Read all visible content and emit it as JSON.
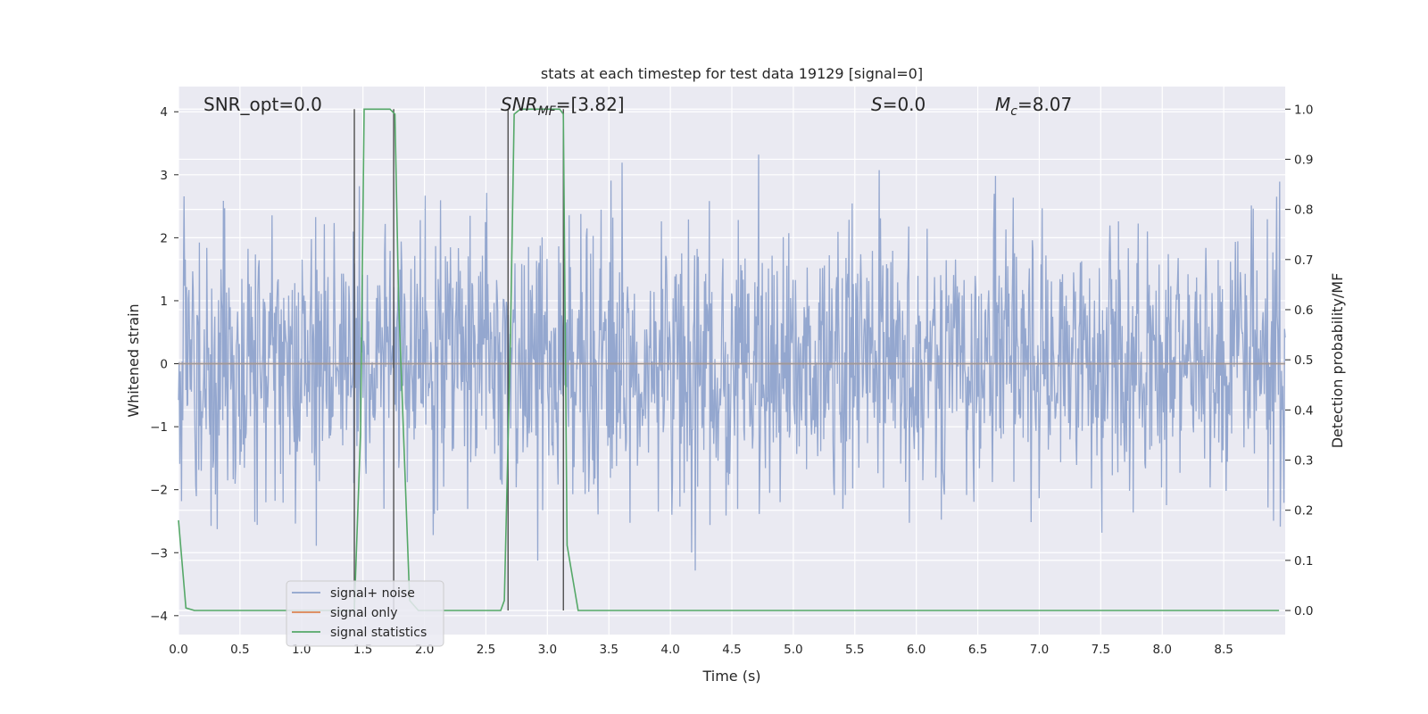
{
  "chart_data": {
    "type": "line",
    "title": "stats at each timestep for test data 19129 [signal=0]",
    "xlabel": "Time (s)",
    "ylabel": "Whitened strain",
    "y2label": "Detection probability/MF",
    "xlim": [
      0.0,
      9.0
    ],
    "ylim": [
      -4.3,
      4.4
    ],
    "y2lim": [
      -0.048,
      1.045
    ],
    "xticks": [
      "0.0",
      "0.5",
      "1.0",
      "1.5",
      "2.0",
      "2.5",
      "3.0",
      "3.5",
      "4.0",
      "4.5",
      "5.0",
      "5.5",
      "6.0",
      "6.5",
      "7.0",
      "7.5",
      "8.0",
      "8.5"
    ],
    "yticks": [
      "4",
      "3",
      "2",
      "1",
      "0",
      "−1",
      "−2",
      "−3",
      "−4"
    ],
    "y2ticks": [
      "1.0",
      "0.9",
      "0.8",
      "0.7",
      "0.6",
      "0.5",
      "0.4",
      "0.3",
      "0.2",
      "0.1",
      "0.0"
    ],
    "grid": true,
    "legend_position": "lower-left",
    "annotations": [
      {
        "id": "snr-opt",
        "text": "SNR_opt=0.0"
      },
      {
        "id": "snr-mf",
        "prefix": "SNR",
        "sub": "MF",
        "text": "=[3.82]"
      },
      {
        "id": "s-val",
        "prefix": "S",
        "text": "=0.0"
      },
      {
        "id": "mc-val",
        "prefix": "M",
        "sub": "c",
        "text": "=8.07"
      }
    ],
    "series": [
      {
        "name": "signal+ noise",
        "color": "#8fa3cc",
        "note": "whitened strain noise, amplitude ~N(0,1), peaks about ±3.5"
      },
      {
        "name": "signal only",
        "color": "#dd8452",
        "values_constant": 0.0
      },
      {
        "name": "signal statistics",
        "color": "#55a868",
        "x": [
          0.0,
          0.06,
          0.13,
          1.43,
          1.48,
          1.51,
          1.72,
          1.76,
          1.79,
          1.88,
          1.95,
          2.62,
          2.65,
          2.7,
          2.73,
          2.78,
          3.1,
          3.13,
          3.16,
          3.25,
          8.95
        ],
        "y": [
          0.18,
          0.005,
          0.0,
          0.0,
          0.35,
          1.0,
          1.0,
          0.99,
          0.62,
          0.02,
          0.0,
          0.0,
          0.02,
          0.55,
          0.99,
          1.0,
          1.0,
          0.99,
          0.13,
          0.0,
          0.0
        ]
      }
    ],
    "vlines": [
      {
        "x": 1.43,
        "y2_range": [
          0.0,
          1.0
        ]
      },
      {
        "x": 1.75,
        "y2_range": [
          0.0,
          1.0
        ]
      },
      {
        "x": 2.68,
        "y2_range": [
          0.0,
          1.0
        ]
      },
      {
        "x": 3.13,
        "y2_range": [
          0.0,
          1.0
        ]
      }
    ]
  }
}
